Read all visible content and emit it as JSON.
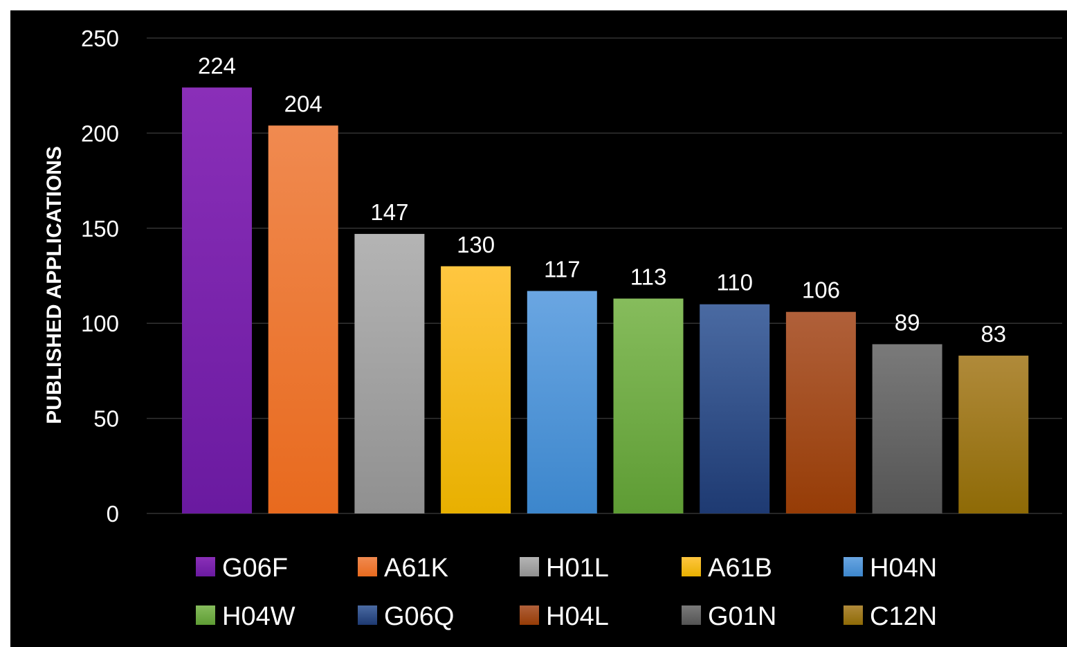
{
  "chart_data": {
    "type": "bar",
    "title": "",
    "xlabel": "",
    "ylabel": "PUBLISHED APPLICATIONS",
    "ylim": [
      0,
      250
    ],
    "yticks": [
      0,
      50,
      100,
      150,
      200,
      250
    ],
    "grid": true,
    "legend_position": "bottom",
    "categories": [
      "G06F",
      "A61K",
      "H01L",
      "A61B",
      "H04N",
      "H04W",
      "G06Q",
      "H04L",
      "G01N",
      "C12N"
    ],
    "values": [
      224,
      204,
      147,
      130,
      117,
      113,
      110,
      106,
      89,
      83
    ],
    "colors": [
      [
        "#8a2fb8",
        "#6a1aa0"
      ],
      [
        "#f08a50",
        "#e86a1e"
      ],
      [
        "#b4b4b4",
        "#909090"
      ],
      [
        "#ffc640",
        "#e8b000"
      ],
      [
        "#6aa6e2",
        "#3c86cc"
      ],
      [
        "#86bc5c",
        "#5e9c34"
      ],
      [
        "#4a6aa2",
        "#1e3a72"
      ],
      [
        "#b0603a",
        "#963c06"
      ],
      [
        "#7a7a7a",
        "#545454"
      ],
      [
        "#b08a3a",
        "#8e6a06"
      ]
    ]
  }
}
